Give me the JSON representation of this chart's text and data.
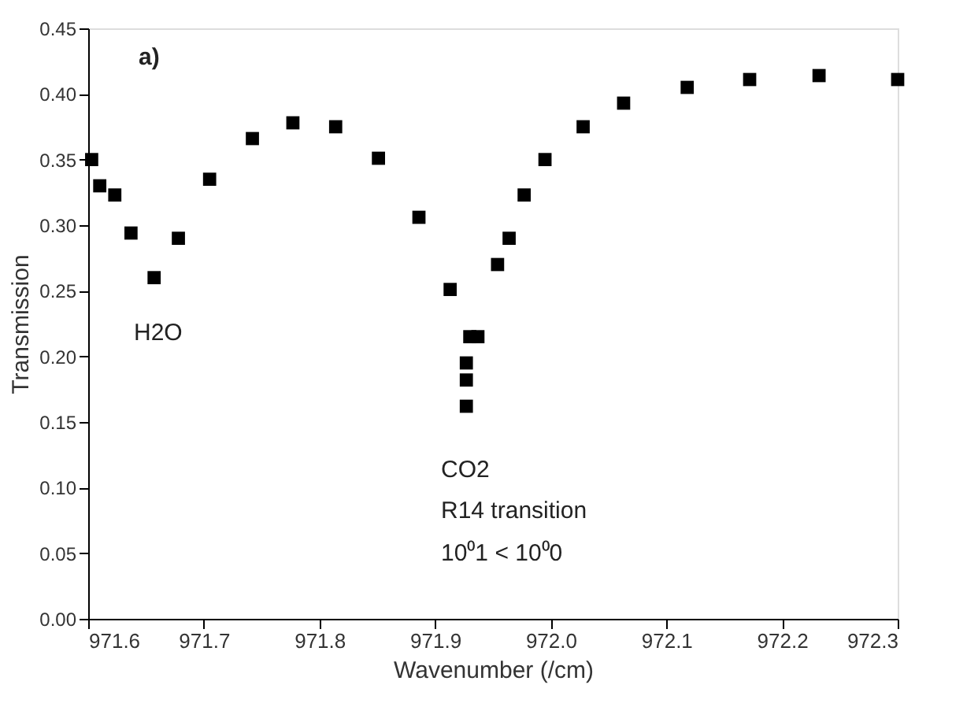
{
  "chart_data": {
    "type": "scatter",
    "xlabel": "Wavenumber (/cm)",
    "ylabel": "Transmission",
    "x": [
      971.603,
      971.61,
      971.623,
      971.637,
      971.657,
      971.678,
      971.705,
      971.742,
      971.777,
      971.814,
      971.851,
      971.886,
      971.913,
      971.93,
      971.927,
      971.927,
      971.927,
      971.937,
      971.954,
      971.964,
      971.977,
      971.995,
      972.028,
      972.063,
      972.118,
      972.172,
      972.232,
      972.3
    ],
    "series": [
      {
        "color": "#000000",
        "values": [
          0.35,
          0.33,
          0.323,
          0.294,
          0.26,
          0.29,
          0.335,
          0.366,
          0.378,
          0.375,
          0.351,
          0.306,
          0.251,
          0.215,
          0.195,
          0.182,
          0.162,
          0.215,
          0.27,
          0.29,
          0.323,
          0.35,
          0.375,
          0.393,
          0.405,
          0.411,
          0.414,
          0.411
        ]
      }
    ],
    "marker": "square",
    "xlim": [
      971.6,
      972.3
    ],
    "xticks": [
      971.6,
      971.7,
      971.8,
      971.9,
      {
        "value": 972,
        "label": "972.0"
      },
      972.1,
      972.2,
      972.3
    ],
    "ylim": [
      0,
      0.45
    ],
    "yticks": [
      {
        "value": 0,
        "label": "0.00"
      },
      0.05,
      {
        "value": 0.1,
        "label": "0.10"
      },
      0.15,
      {
        "value": 0.2,
        "label": "0.20"
      },
      0.25,
      {
        "value": 0.3,
        "label": "0.30"
      },
      0.35,
      {
        "value": 0.4,
        "label": "0.40"
      },
      0.45
    ],
    "grid": false,
    "annotations": [
      "a)",
      "H2O",
      "CO2",
      "R14 transition",
      "10⁰1 < 10⁰0"
    ]
  }
}
